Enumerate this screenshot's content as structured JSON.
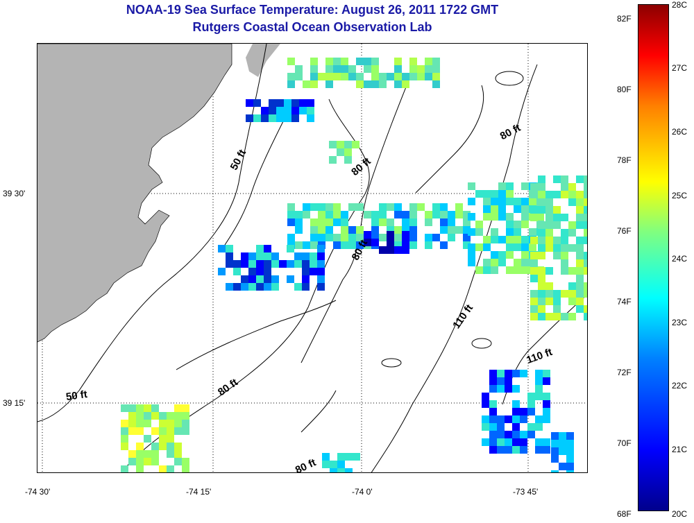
{
  "title": "NOAA-19 Sea Surface Temperature:  August 26, 2011 1722 GMT",
  "subtitle": "Rutgers Coastal Ocean Observation Lab",
  "lat_labels": [
    "39 30'",
    "39 15'"
  ],
  "lon_labels": [
    "-74 30'",
    "-74 15'",
    "-74 0'",
    "-73 45'"
  ],
  "depth_labels": [
    "50 ft",
    "80 ft",
    "80 ft",
    "80 ft",
    "110 ft",
    "110 ft",
    "50 ft",
    "80 ft",
    "80 ft"
  ],
  "colorbar": {
    "fahrenheit": [
      "82F",
      "80F",
      "78F",
      "76F",
      "74F",
      "72F",
      "70F",
      "68F"
    ],
    "celsius": [
      "28C",
      "27C",
      "26C",
      "25C",
      "24C",
      "23C",
      "22C",
      "21C",
      "20C"
    ],
    "range_c": [
      20,
      28
    ],
    "colors": [
      "#00008c",
      "#0000ff",
      "#0080ff",
      "#00ffff",
      "#7fff80",
      "#ffff00",
      "#ff8000",
      "#ff0000",
      "#8c0000"
    ]
  },
  "colors": {
    "land": "#b4b4b4",
    "title": "#1a1aa6"
  }
}
